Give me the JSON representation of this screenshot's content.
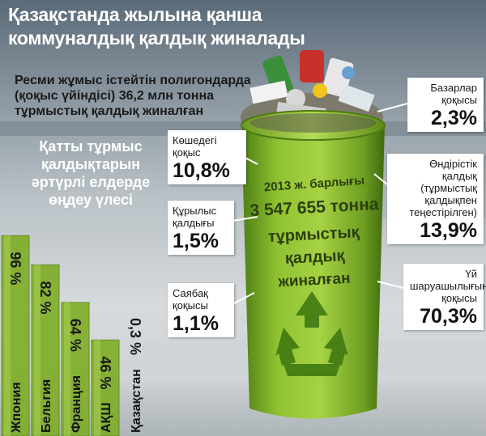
{
  "title": "Қазақстанда жылына қанша коммуналдық қалдық жиналады",
  "subtitle": "Ресми жұмыс істейтін полигондарда (қоқыс үйіндісі) 36,2 млн тонна тұрмыстық қалдық жиналған",
  "can": {
    "year_line": "2013 ж. барлығы",
    "amount_line": "3 547 655 тонна",
    "line3": "тұрмыстық қалдық",
    "line4": "жиналған"
  },
  "colors": {
    "can_green": "#86b92e",
    "bar_green": "#7fae2a",
    "bar_green_light": "#a6cc4e",
    "arrow_green": "#3f7a12"
  },
  "chart_data": [
    {
      "type": "bar",
      "title": "Қатты тұрмыс қалдықтарын әртүрлі елдерде өңдеу үлесі",
      "categories": [
        "Жпония",
        "Бельгия",
        "Франция",
        "АҚШ",
        "Қазақстан"
      ],
      "values": [
        96,
        82,
        64,
        46,
        0.3
      ],
      "value_labels": [
        "96 %",
        "82 %",
        "64 %",
        "46 %",
        "0,3 %"
      ],
      "unit": "%",
      "ylim": [
        0,
        100
      ],
      "grid": false,
      "legend": "none"
    },
    {
      "type": "pie",
      "title": "2013 ж. барлығы 3 547 655 тонна тұрмыстық қалдық жиналған",
      "categories": [
        "Көшедегі қоқыс",
        "Құрылыс қалдығы",
        "Саябақ қоқысы",
        "Базарлар қоқысы",
        "Өндірістік қалдық (тұрмыстық қалдықпен теңестірілген)",
        "Үй шаруашылығының қоқысы"
      ],
      "values": [
        10.8,
        1.5,
        1.1,
        2.3,
        13.9,
        70.3
      ],
      "value_labels": [
        "10,8%",
        "1,5%",
        "1,1%",
        "2,3%",
        "13,9%",
        "70,3%"
      ],
      "unit": "%",
      "legend": "callouts"
    }
  ]
}
